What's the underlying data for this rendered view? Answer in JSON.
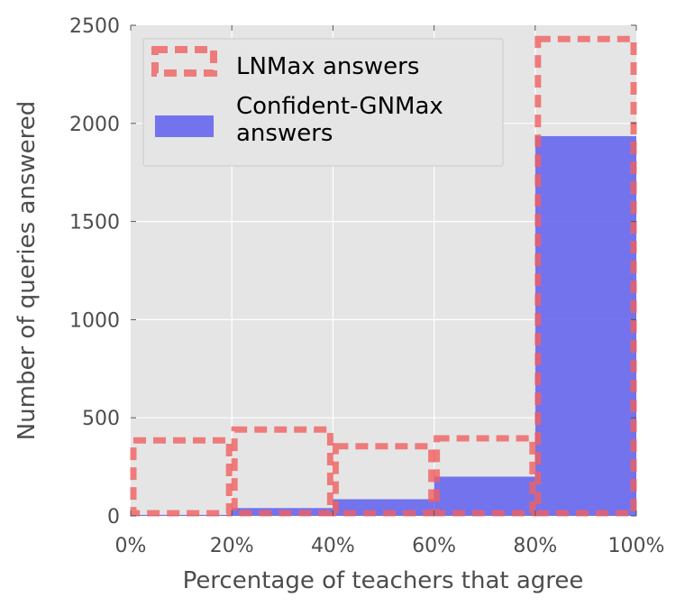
{
  "chart_data": {
    "type": "bar",
    "xlabel": "Percentage of teachers that agree",
    "ylabel": "Number of queries answered",
    "x_ticks": [
      "0%",
      "20%",
      "40%",
      "60%",
      "80%",
      "100%"
    ],
    "x_edges": [
      0,
      20,
      40,
      60,
      80,
      100
    ],
    "y_ticks": [
      "0",
      "500",
      "1000",
      "1500",
      "2000",
      "2500"
    ],
    "y_tick_values": [
      0,
      500,
      1000,
      1500,
      2000,
      2500
    ],
    "ylim": [
      0,
      2500
    ],
    "xlim": [
      0,
      100
    ],
    "grid": true,
    "legend_position": "top-left",
    "series": [
      {
        "name": "LNMax answers",
        "style": "dashed-outline",
        "color": "#f06060",
        "values": [
          385,
          440,
          355,
          395,
          2430
        ]
      },
      {
        "name": "Confident-GNMax answers",
        "style": "filled",
        "color": "#6666ee",
        "values": [
          5,
          40,
          85,
          200,
          1935
        ]
      }
    ],
    "legend": {
      "entries": [
        {
          "lines": [
            "LNMax answers"
          ]
        },
        {
          "lines": [
            "Confident-GNMax",
            "answers"
          ]
        }
      ]
    }
  },
  "colors": {
    "plot_background": "#e5e5e5",
    "grid": "#ffffff",
    "tick_text": "#4d4d4d",
    "legend_background": "#e5e5e5",
    "legend_border": "#cccccc"
  }
}
